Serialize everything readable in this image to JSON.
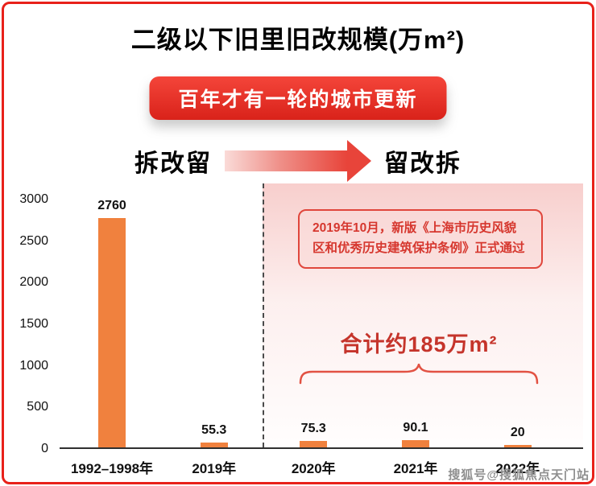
{
  "title": "二级以下旧里旧改规模(万m²)",
  "banner": "百年才有一轮的城市更新",
  "phase": {
    "left": "拆改留",
    "right": "留改拆"
  },
  "annotation": "2019年10月，新版《上海市历史风貌区和优秀历史建筑保护条例》正式通过",
  "total_label": "合计约185万m²",
  "watermark": "搜狐号@搜狐焦点天门站",
  "colors": {
    "accent_red": "#E8211A",
    "bar_orange": "#F0813E",
    "annotation_red": "#D6372E",
    "total_red": "#C5342B"
  },
  "chart_data": {
    "type": "bar",
    "title": "二级以下旧里旧改规模(万m²)",
    "categories": [
      "1992–1998年",
      "2019年",
      "2020年",
      "2021年",
      "2022年"
    ],
    "values": [
      2760,
      55.3,
      75.3,
      90.1,
      20
    ],
    "value_labels": [
      "2760",
      "55.3",
      "75.3",
      "90.1",
      "20"
    ],
    "ylim": [
      0,
      3000
    ],
    "yticks": [
      0,
      500,
      1000,
      1500,
      2000,
      2500,
      3000
    ],
    "xlabel": "",
    "ylabel": "",
    "grid": false,
    "legend": "none",
    "bar_color": "#F0813E",
    "annotations": [
      {
        "text": "2019年10月，新版《上海市历史风貌区和优秀历史建筑保护条例》正式通过",
        "applies_to": [
          "2020年",
          "2021年",
          "2022年"
        ]
      },
      {
        "text": "合计约185万m²",
        "applies_to": [
          "2020年",
          "2021年",
          "2022年"
        ]
      }
    ],
    "sections": {
      "left_label": "拆改留",
      "right_label": "留改拆",
      "divider_between": [
        "2019年",
        "2020年"
      ]
    }
  }
}
